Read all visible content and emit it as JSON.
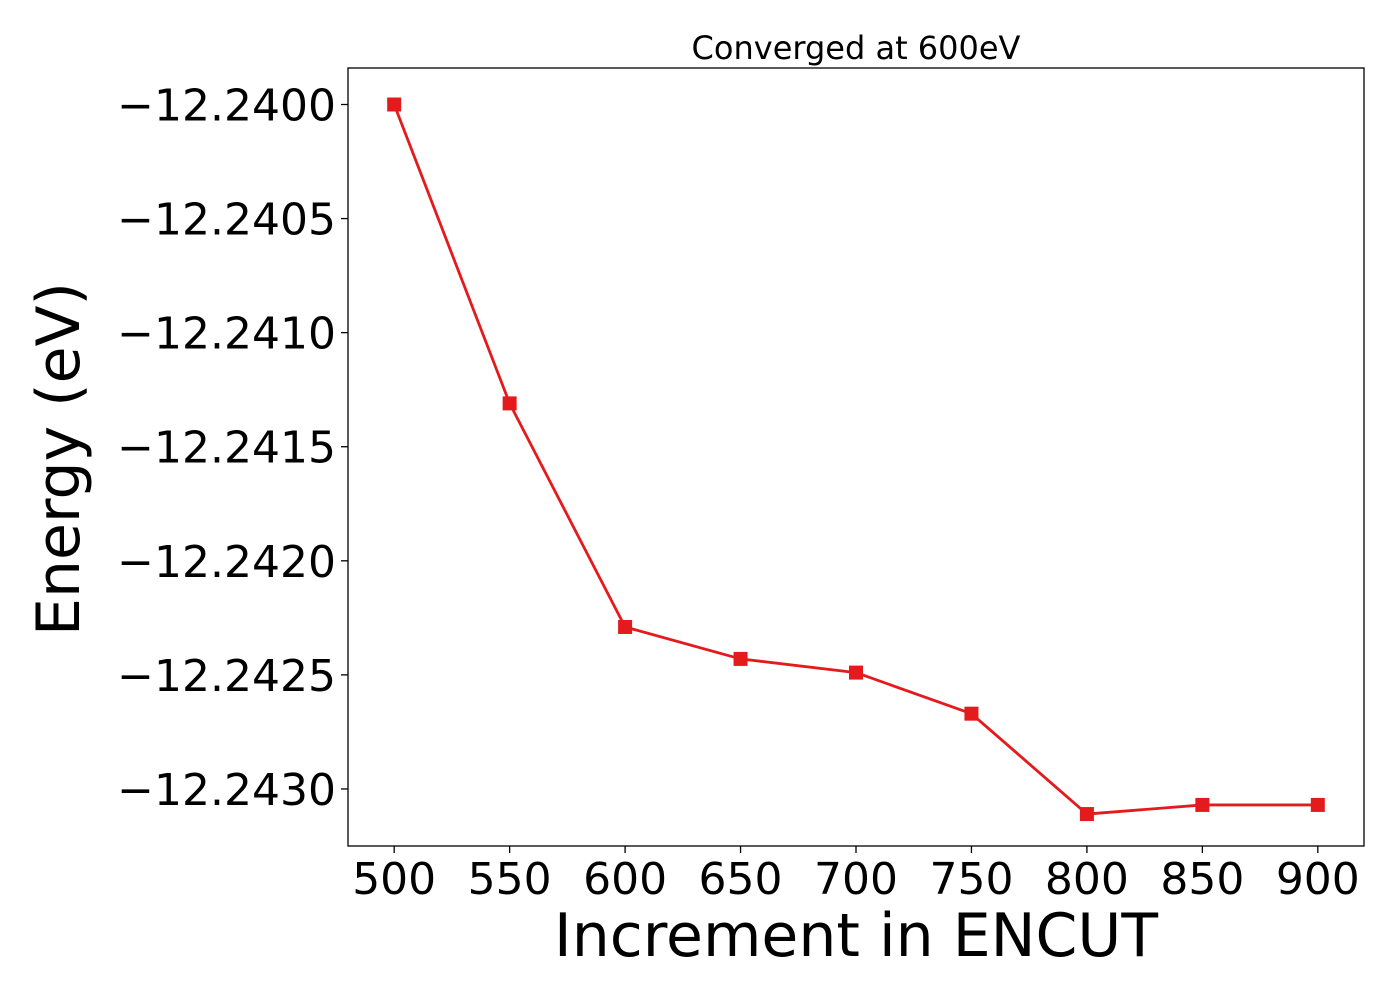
{
  "chart_data": {
    "type": "line",
    "title": "Converged at 600eV",
    "xlabel": "Increment in ENCUT",
    "ylabel": "Energy (eV)",
    "x": [
      500,
      550,
      600,
      650,
      700,
      750,
      800,
      850,
      900
    ],
    "series": [
      {
        "values": [
          -12.24,
          -12.24131,
          -12.24229,
          -12.24243,
          -12.24249,
          -12.24267,
          -12.24311,
          -12.24307,
          -12.24307
        ],
        "color": "#e41a1c",
        "marker": "square"
      }
    ],
    "xticks": [
      500,
      550,
      600,
      650,
      700,
      750,
      800,
      850,
      900
    ],
    "xtick_labels": [
      "500",
      "550",
      "600",
      "650",
      "700",
      "750",
      "800",
      "850",
      "900"
    ],
    "yticks": [
      -12.24,
      -12.2405,
      -12.241,
      -12.2415,
      -12.242,
      -12.2425,
      -12.243
    ],
    "ytick_labels": [
      "−12.2400",
      "−12.2405",
      "−12.2410",
      "−12.2415",
      "−12.2420",
      "−12.2425",
      "−12.2430"
    ],
    "xlim": [
      480,
      920
    ],
    "ylim": [
      -12.24325,
      -12.23984
    ],
    "grid": false,
    "legend": "none"
  }
}
